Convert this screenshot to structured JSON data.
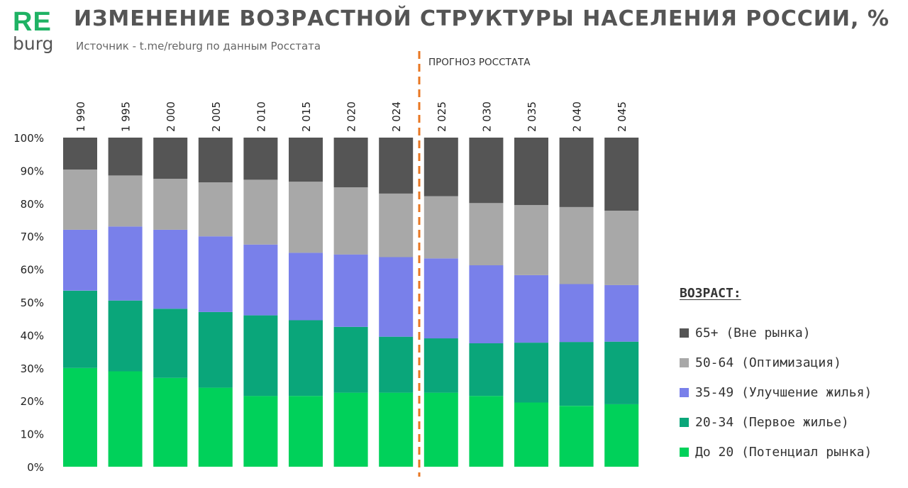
{
  "logo": {
    "re": "RE",
    "burg": "burg"
  },
  "header": {
    "title": "ИЗМЕНЕНИЕ ВОЗРАСТНОЙ СТРУКТУРЫ НАСЕЛЕНИЯ РОССИИ, %",
    "subtitle": "Источник - t.me/reburg по данным Росстата"
  },
  "forecast_label": "ПРОГНОЗ РОССТАТА",
  "legend_title": "ВОЗРАСТ:",
  "chart_data": {
    "type": "bar",
    "stacked": true,
    "categories": [
      "1 990",
      "1 995",
      "2 000",
      "2 005",
      "2 010",
      "2 015",
      "2 020",
      "2 024",
      "2 025",
      "2 030",
      "2 035",
      "2 040",
      "2 045"
    ],
    "y_ticks": [
      "0%",
      "10%",
      "20%",
      "30%",
      "40%",
      "50%",
      "60%",
      "70%",
      "80%",
      "90%",
      "100%"
    ],
    "ylim": [
      0,
      100
    ],
    "legend_position": "right",
    "series": [
      {
        "name": "До 20 (Потенциал рынка)",
        "color": "#00d15a",
        "values": [
          30,
          29,
          27,
          24,
          21.5,
          21.5,
          22.5,
          22.5,
          22.5,
          21.5,
          19.5,
          18.5,
          19
        ]
      },
      {
        "name": "20-34 (Первое жилье)",
        "color": "#0aa67a",
        "values": [
          23.5,
          21.5,
          21,
          23,
          24.5,
          23,
          20,
          17,
          16.5,
          16,
          18.2,
          19.4,
          19
        ]
      },
      {
        "name": "35-49 (Улучшение жилья)",
        "color": "#7980ea",
        "values": [
          18.5,
          22.5,
          24,
          23,
          21.5,
          20.5,
          22,
          24.2,
          24.3,
          23.7,
          20.5,
          17.6,
          17.2
        ]
      },
      {
        "name": "50-64 (Оптимизация)",
        "color": "#a8a8a8",
        "values": [
          18.3,
          15.5,
          15.5,
          16.4,
          19.7,
          21.6,
          20.4,
          19.3,
          18.9,
          18.9,
          21.3,
          23.4,
          22.6
        ]
      },
      {
        "name": "65+ (Вне рынка)",
        "color": "#555555",
        "values": [
          9.7,
          11.5,
          12.5,
          13.6,
          12.8,
          13.4,
          15.1,
          17,
          17.8,
          19.9,
          20.5,
          21.1,
          22.2
        ]
      }
    ],
    "forecast_start_index": 8
  }
}
